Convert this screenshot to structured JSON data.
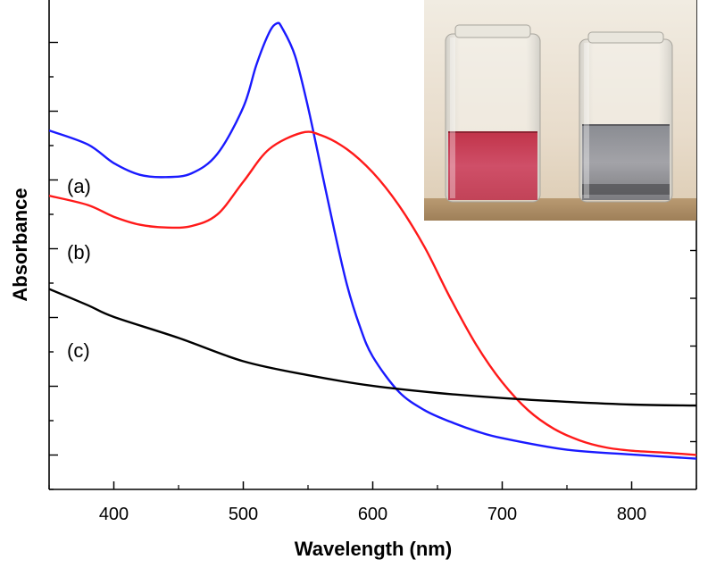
{
  "chart_data": {
    "type": "line",
    "title": "",
    "xlabel": "Wavelength (nm)",
    "ylabel": "Absorbance",
    "xlim": [
      350,
      850
    ],
    "ylim": [
      0,
      1.05
    ],
    "xticks": [
      400,
      500,
      600,
      700,
      800
    ],
    "yticks_shown": false,
    "grid": false,
    "legend": "none",
    "series": [
      {
        "name": "(a)",
        "color": "#1a1aff",
        "points": [
          [
            350,
            0.77
          ],
          [
            380,
            0.74
          ],
          [
            400,
            0.7
          ],
          [
            420,
            0.675
          ],
          [
            440,
            0.67
          ],
          [
            460,
            0.678
          ],
          [
            480,
            0.72
          ],
          [
            500,
            0.82
          ],
          [
            510,
            0.91
          ],
          [
            520,
            0.98
          ],
          [
            526,
            1.0
          ],
          [
            530,
            0.99
          ],
          [
            540,
            0.93
          ],
          [
            550,
            0.82
          ],
          [
            560,
            0.69
          ],
          [
            570,
            0.56
          ],
          [
            580,
            0.44
          ],
          [
            590,
            0.35
          ],
          [
            600,
            0.285
          ],
          [
            620,
            0.21
          ],
          [
            640,
            0.17
          ],
          [
            660,
            0.145
          ],
          [
            680,
            0.125
          ],
          [
            700,
            0.11
          ],
          [
            750,
            0.085
          ],
          [
            800,
            0.075
          ],
          [
            850,
            0.066
          ]
        ]
      },
      {
        "name": "(b)",
        "color": "#ff1a1a",
        "points": [
          [
            350,
            0.63
          ],
          [
            380,
            0.61
          ],
          [
            400,
            0.585
          ],
          [
            420,
            0.568
          ],
          [
            440,
            0.562
          ],
          [
            460,
            0.565
          ],
          [
            480,
            0.59
          ],
          [
            500,
            0.66
          ],
          [
            520,
            0.73
          ],
          [
            545,
            0.765
          ],
          [
            560,
            0.76
          ],
          [
            580,
            0.73
          ],
          [
            600,
            0.68
          ],
          [
            620,
            0.61
          ],
          [
            640,
            0.52
          ],
          [
            660,
            0.41
          ],
          [
            680,
            0.31
          ],
          [
            700,
            0.23
          ],
          [
            720,
            0.17
          ],
          [
            740,
            0.13
          ],
          [
            760,
            0.105
          ],
          [
            780,
            0.09
          ],
          [
            800,
            0.083
          ],
          [
            830,
            0.078
          ],
          [
            850,
            0.074
          ]
        ]
      },
      {
        "name": "(c)",
        "color": "#000000",
        "points": [
          [
            350,
            0.43
          ],
          [
            380,
            0.395
          ],
          [
            400,
            0.37
          ],
          [
            450,
            0.325
          ],
          [
            500,
            0.275
          ],
          [
            550,
            0.245
          ],
          [
            600,
            0.222
          ],
          [
            650,
            0.207
          ],
          [
            700,
            0.196
          ],
          [
            750,
            0.188
          ],
          [
            800,
            0.182
          ],
          [
            850,
            0.18
          ]
        ]
      }
    ],
    "annotations": [
      "(a)",
      "(b)",
      "(c)"
    ],
    "inset": "photo of two vials: left with red/pink liquid, right with grey liquid"
  }
}
